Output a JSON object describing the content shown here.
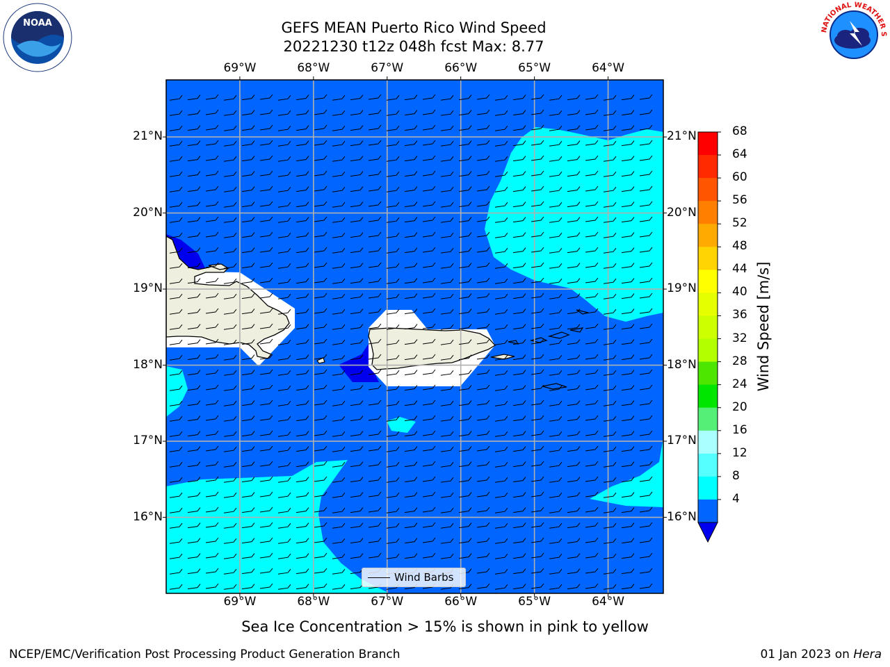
{
  "title": {
    "line1": "GEFS MEAN Puerto Rico Wind Speed",
    "line2": "20221230 t12z 048h fcst   Max: 8.77"
  },
  "map": {
    "lon_ticks": [
      "69°W",
      "68°W",
      "67°W",
      "66°W",
      "65°W",
      "64°W"
    ],
    "lat_ticks": [
      "21°N",
      "20°N",
      "19°N",
      "18°N",
      "17°N",
      "16°N"
    ],
    "extent": {
      "lon": [
        -70.0,
        -63.25
      ],
      "lat": [
        15.0,
        21.75
      ]
    },
    "fill_colors": {
      "4-8": "#0066ff",
      "8-12": "#00ffff",
      "below-4": "#0000ee",
      "land": "#efefdf"
    },
    "legend_label": "Wind Barbs"
  },
  "colorbar": {
    "label": "Wind Speed [m/s]",
    "ticks": [
      "68",
      "64",
      "60",
      "56",
      "52",
      "48",
      "44",
      "40",
      "36",
      "32",
      "28",
      "24",
      "20",
      "16",
      "12",
      "8",
      "4"
    ],
    "colors": [
      "#ff0000",
      "#ff2a00",
      "#ff5500",
      "#ff8000",
      "#ffaa00",
      "#ffd400",
      "#ffff00",
      "#e5ff00",
      "#ccff00",
      "#b3ff00",
      "#4ce600",
      "#00e600",
      "#55ee77",
      "#aaffff",
      "#55ffff",
      "#00ffff",
      "#0066ff"
    ],
    "under_color": "#0000ee"
  },
  "subtitle": "Sea Ice Concentration > 15% is shown in pink to yellow",
  "footer": {
    "left": "NCEP/EMC/Verification Post Processing Product Generation Branch",
    "date": "01 Jan 2023 on ",
    "machine": "Hera"
  },
  "logos": {
    "left": "NOAA",
    "right": "NATIONAL WEATHER SERVICE"
  }
}
